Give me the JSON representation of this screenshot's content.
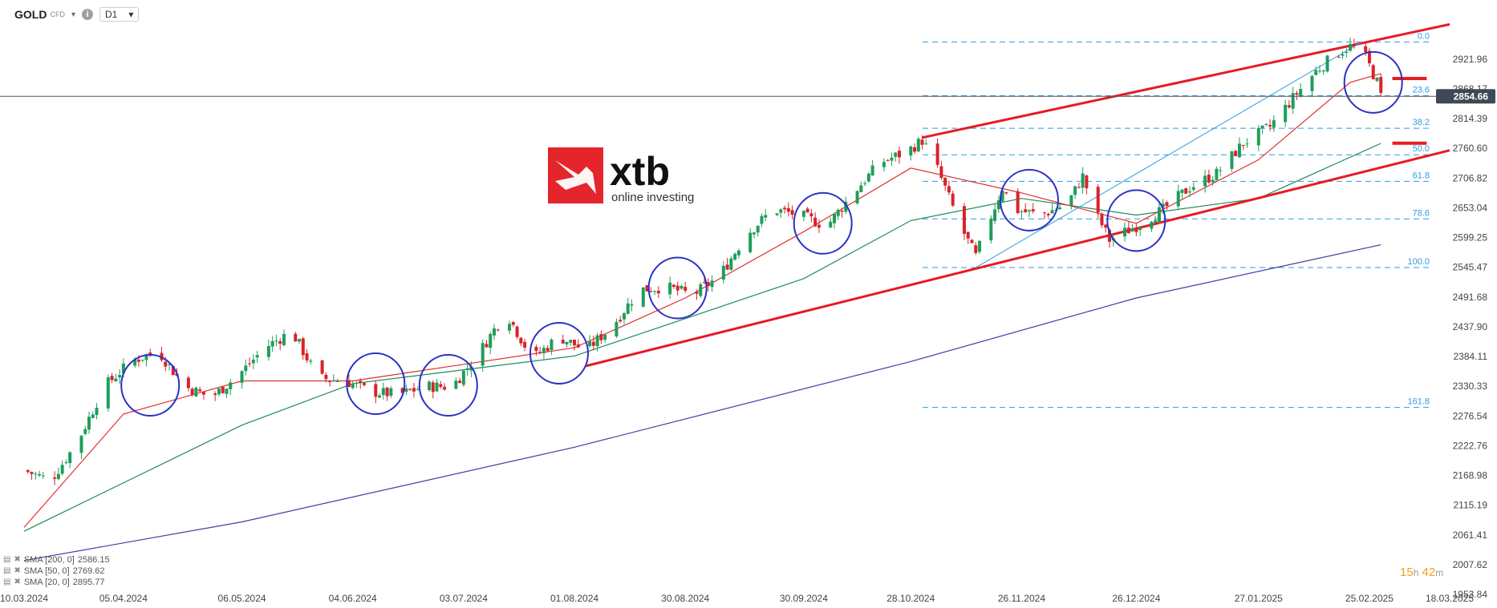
{
  "toolbar": {
    "symbol": "GOLD",
    "type": "CFD",
    "timeframe": "D1"
  },
  "logo": {
    "brand": "xtb",
    "tagline": "online investing",
    "color": "#e5252c"
  },
  "legend": [
    {
      "label": "SMA [200, 0]",
      "value": "2586.15"
    },
    {
      "label": "SMA [50, 0]",
      "value": "2769.62"
    },
    {
      "label": "SMA [20, 0]",
      "value": "2895.77"
    }
  ],
  "timer": {
    "hours": "15",
    "h_unit": "h",
    "minutes": "42",
    "m_unit": "m"
  },
  "chart_data": {
    "type": "candlestick",
    "title": "GOLD D1",
    "ylim": [
      1953.84,
      3000
    ],
    "y_ticks": [
      "2921.96",
      "2868.17",
      "2814.39",
      "2760.60",
      "2706.82",
      "2653.04",
      "2599.25",
      "2545.47",
      "2491.68",
      "2437.90",
      "2384.11",
      "2330.33",
      "2276.54",
      "2222.76",
      "2168.98",
      "2115.19",
      "2061.41",
      "2007.62",
      "1953.84"
    ],
    "x_ticks": [
      "10.03.2024",
      "05.04.2024",
      "06.05.2024",
      "04.06.2024",
      "03.07.2024",
      "01.08.2024",
      "30.08.2024",
      "30.09.2024",
      "28.10.2024",
      "26.11.2024",
      "26.12.2024",
      "27.01.2025",
      "25.02.2025",
      "18.03.2025"
    ],
    "current_price": "2854.66",
    "fibonacci": [
      {
        "level": "0.0",
        "price": 2953
      },
      {
        "level": "23.6",
        "price": 2856
      },
      {
        "level": "38.2",
        "price": 2797
      },
      {
        "level": "50.0",
        "price": 2749
      },
      {
        "level": "61.8",
        "price": 2701
      },
      {
        "level": "78.6",
        "price": 2633
      },
      {
        "level": "100.0",
        "price": 2545
      },
      {
        "level": "161.8",
        "price": 2292
      }
    ],
    "anchors": [
      {
        "date": "10.03.2024",
        "close": 2178
      },
      {
        "date": "17.03.2024",
        "close": 2160
      },
      {
        "date": "24.03.2024",
        "close": 2230
      },
      {
        "date": "31.03.2024",
        "close": 2330
      },
      {
        "date": "07.04.2024",
        "close": 2375
      },
      {
        "date": "14.04.2024",
        "close": 2395
      },
      {
        "date": "21.04.2024",
        "close": 2330
      },
      {
        "date": "28.04.2024",
        "close": 2310
      },
      {
        "date": "05.05.2024",
        "close": 2350
      },
      {
        "date": "12.05.2024",
        "close": 2400
      },
      {
        "date": "19.05.2024",
        "close": 2430
      },
      {
        "date": "26.05.2024",
        "close": 2345
      },
      {
        "date": "02.06.2024",
        "close": 2340
      },
      {
        "date": "09.06.2024",
        "close": 2320
      },
      {
        "date": "16.06.2024",
        "close": 2315
      },
      {
        "date": "23.06.2024",
        "close": 2330
      },
      {
        "date": "30.06.2024",
        "close": 2330
      },
      {
        "date": "07.07.2024",
        "close": 2390
      },
      {
        "date": "14.07.2024",
        "close": 2465
      },
      {
        "date": "21.07.2024",
        "close": 2380
      },
      {
        "date": "28.07.2024",
        "close": 2420
      },
      {
        "date": "04.08.2024",
        "close": 2395
      },
      {
        "date": "11.08.2024",
        "close": 2440
      },
      {
        "date": "18.08.2024",
        "close": 2505
      },
      {
        "date": "25.08.2024",
        "close": 2510
      },
      {
        "date": "01.09.2024",
        "close": 2495
      },
      {
        "date": "08.09.2024",
        "close": 2530
      },
      {
        "date": "15.09.2024",
        "close": 2605
      },
      {
        "date": "22.09.2024",
        "close": 2650
      },
      {
        "date": "29.09.2024",
        "close": 2640
      },
      {
        "date": "06.10.2024",
        "close": 2620
      },
      {
        "date": "13.10.2024",
        "close": 2680
      },
      {
        "date": "20.10.2024",
        "close": 2735
      },
      {
        "date": "27.10.2024",
        "close": 2755
      },
      {
        "date": "31.10.2024",
        "close": 2775
      },
      {
        "date": "03.11.2024",
        "close": 2740
      },
      {
        "date": "10.11.2024",
        "close": 2620
      },
      {
        "date": "14.11.2024",
        "close": 2565
      },
      {
        "date": "17.11.2024",
        "close": 2620
      },
      {
        "date": "21.11.2024",
        "close": 2690
      },
      {
        "date": "24.11.2024",
        "close": 2650
      },
      {
        "date": "01.12.2024",
        "close": 2640
      },
      {
        "date": "08.12.2024",
        "close": 2660
      },
      {
        "date": "12.12.2024",
        "close": 2710
      },
      {
        "date": "15.12.2024",
        "close": 2650
      },
      {
        "date": "19.12.2024",
        "close": 2595
      },
      {
        "date": "26.12.2024",
        "close": 2620
      },
      {
        "date": "02.01.2025",
        "close": 2650
      },
      {
        "date": "09.01.2025",
        "close": 2690
      },
      {
        "date": "16.01.2025",
        "close": 2715
      },
      {
        "date": "23.01.2025",
        "close": 2770
      },
      {
        "date": "30.01.2025",
        "close": 2800
      },
      {
        "date": "06.02.2025",
        "close": 2860
      },
      {
        "date": "11.02.2025",
        "close": 2900
      },
      {
        "date": "16.02.2025",
        "close": 2930
      },
      {
        "date": "20.02.2025",
        "close": 2945
      },
      {
        "date": "23.02.2025",
        "close": 2940
      },
      {
        "date": "27.02.2025",
        "close": 2880
      },
      {
        "date": "28.02.2025",
        "close": 2855
      }
    ],
    "sma": [
      {
        "name": "SMA [200, 0]",
        "color": "#3f3fa0",
        "points": [
          {
            "date": "10.03.2024",
            "value": 2015
          },
          {
            "date": "06.05.2024",
            "value": 2085
          },
          {
            "date": "01.08.2024",
            "value": 2220
          },
          {
            "date": "28.10.2024",
            "value": 2375
          },
          {
            "date": "26.12.2024",
            "value": 2490
          },
          {
            "date": "28.02.2025",
            "value": 2586.15
          }
        ]
      },
      {
        "name": "SMA [50, 0]",
        "color": "#1e8a5a",
        "points": [
          {
            "date": "10.03.2024",
            "value": 2068
          },
          {
            "date": "06.05.2024",
            "value": 2260
          },
          {
            "date": "04.06.2024",
            "value": 2335
          },
          {
            "date": "01.08.2024",
            "value": 2385
          },
          {
            "date": "30.09.2024",
            "value": 2525
          },
          {
            "date": "28.10.2024",
            "value": 2630
          },
          {
            "date": "26.11.2024",
            "value": 2670
          },
          {
            "date": "26.12.2024",
            "value": 2640
          },
          {
            "date": "27.01.2025",
            "value": 2670
          },
          {
            "date": "28.02.2025",
            "value": 2769.62
          }
        ]
      },
      {
        "name": "SMA [20, 0]",
        "color": "#e03030",
        "points": [
          {
            "date": "10.03.2024",
            "value": 2075
          },
          {
            "date": "05.04.2024",
            "value": 2280
          },
          {
            "date": "06.05.2024",
            "value": 2340
          },
          {
            "date": "04.06.2024",
            "value": 2340
          },
          {
            "date": "03.07.2024",
            "value": 2370
          },
          {
            "date": "01.08.2024",
            "value": 2400
          },
          {
            "date": "30.08.2024",
            "value": 2490
          },
          {
            "date": "30.09.2024",
            "value": 2610
          },
          {
            "date": "28.10.2024",
            "value": 2725
          },
          {
            "date": "26.11.2024",
            "value": 2680
          },
          {
            "date": "26.12.2024",
            "value": 2625
          },
          {
            "date": "27.01.2025",
            "value": 2740
          },
          {
            "date": "20.02.2025",
            "value": 2880
          },
          {
            "date": "28.02.2025",
            "value": 2895.77
          }
        ]
      }
    ],
    "trendlines": [
      {
        "name": "channel-upper",
        "from": {
          "date": "31.10.2024",
          "value": 2780
        },
        "to": {
          "date": "18.03.2025",
          "value": 2985
        }
      },
      {
        "name": "channel-lower",
        "from": {
          "date": "04.08.2024",
          "value": 2367
        },
        "to": {
          "date": "18.03.2025",
          "value": 2757
        }
      },
      {
        "name": "fib-swing",
        "from": {
          "date": "14.11.2024",
          "value": 2545
        },
        "to": {
          "date": "23.02.2025",
          "value": 2953
        }
      }
    ],
    "levels": [
      {
        "name": "resistance-mark",
        "price": 2887,
        "from": "03.03.2025",
        "to": "12.03.2025"
      },
      {
        "name": "support-mark",
        "price": 2770,
        "from": "03.03.2025",
        "to": "12.03.2025"
      }
    ],
    "highlights": [
      {
        "date": "12.04.2024",
        "price": 2332
      },
      {
        "date": "10.06.2024",
        "price": 2335
      },
      {
        "date": "29.06.2024",
        "price": 2332
      },
      {
        "date": "28.07.2024",
        "price": 2390
      },
      {
        "date": "28.08.2024",
        "price": 2508
      },
      {
        "date": "05.10.2024",
        "price": 2625
      },
      {
        "date": "28.11.2024",
        "price": 2667
      },
      {
        "date": "26.12.2024",
        "price": 2630
      },
      {
        "date": "26.02.2025",
        "price": 2880
      }
    ]
  }
}
